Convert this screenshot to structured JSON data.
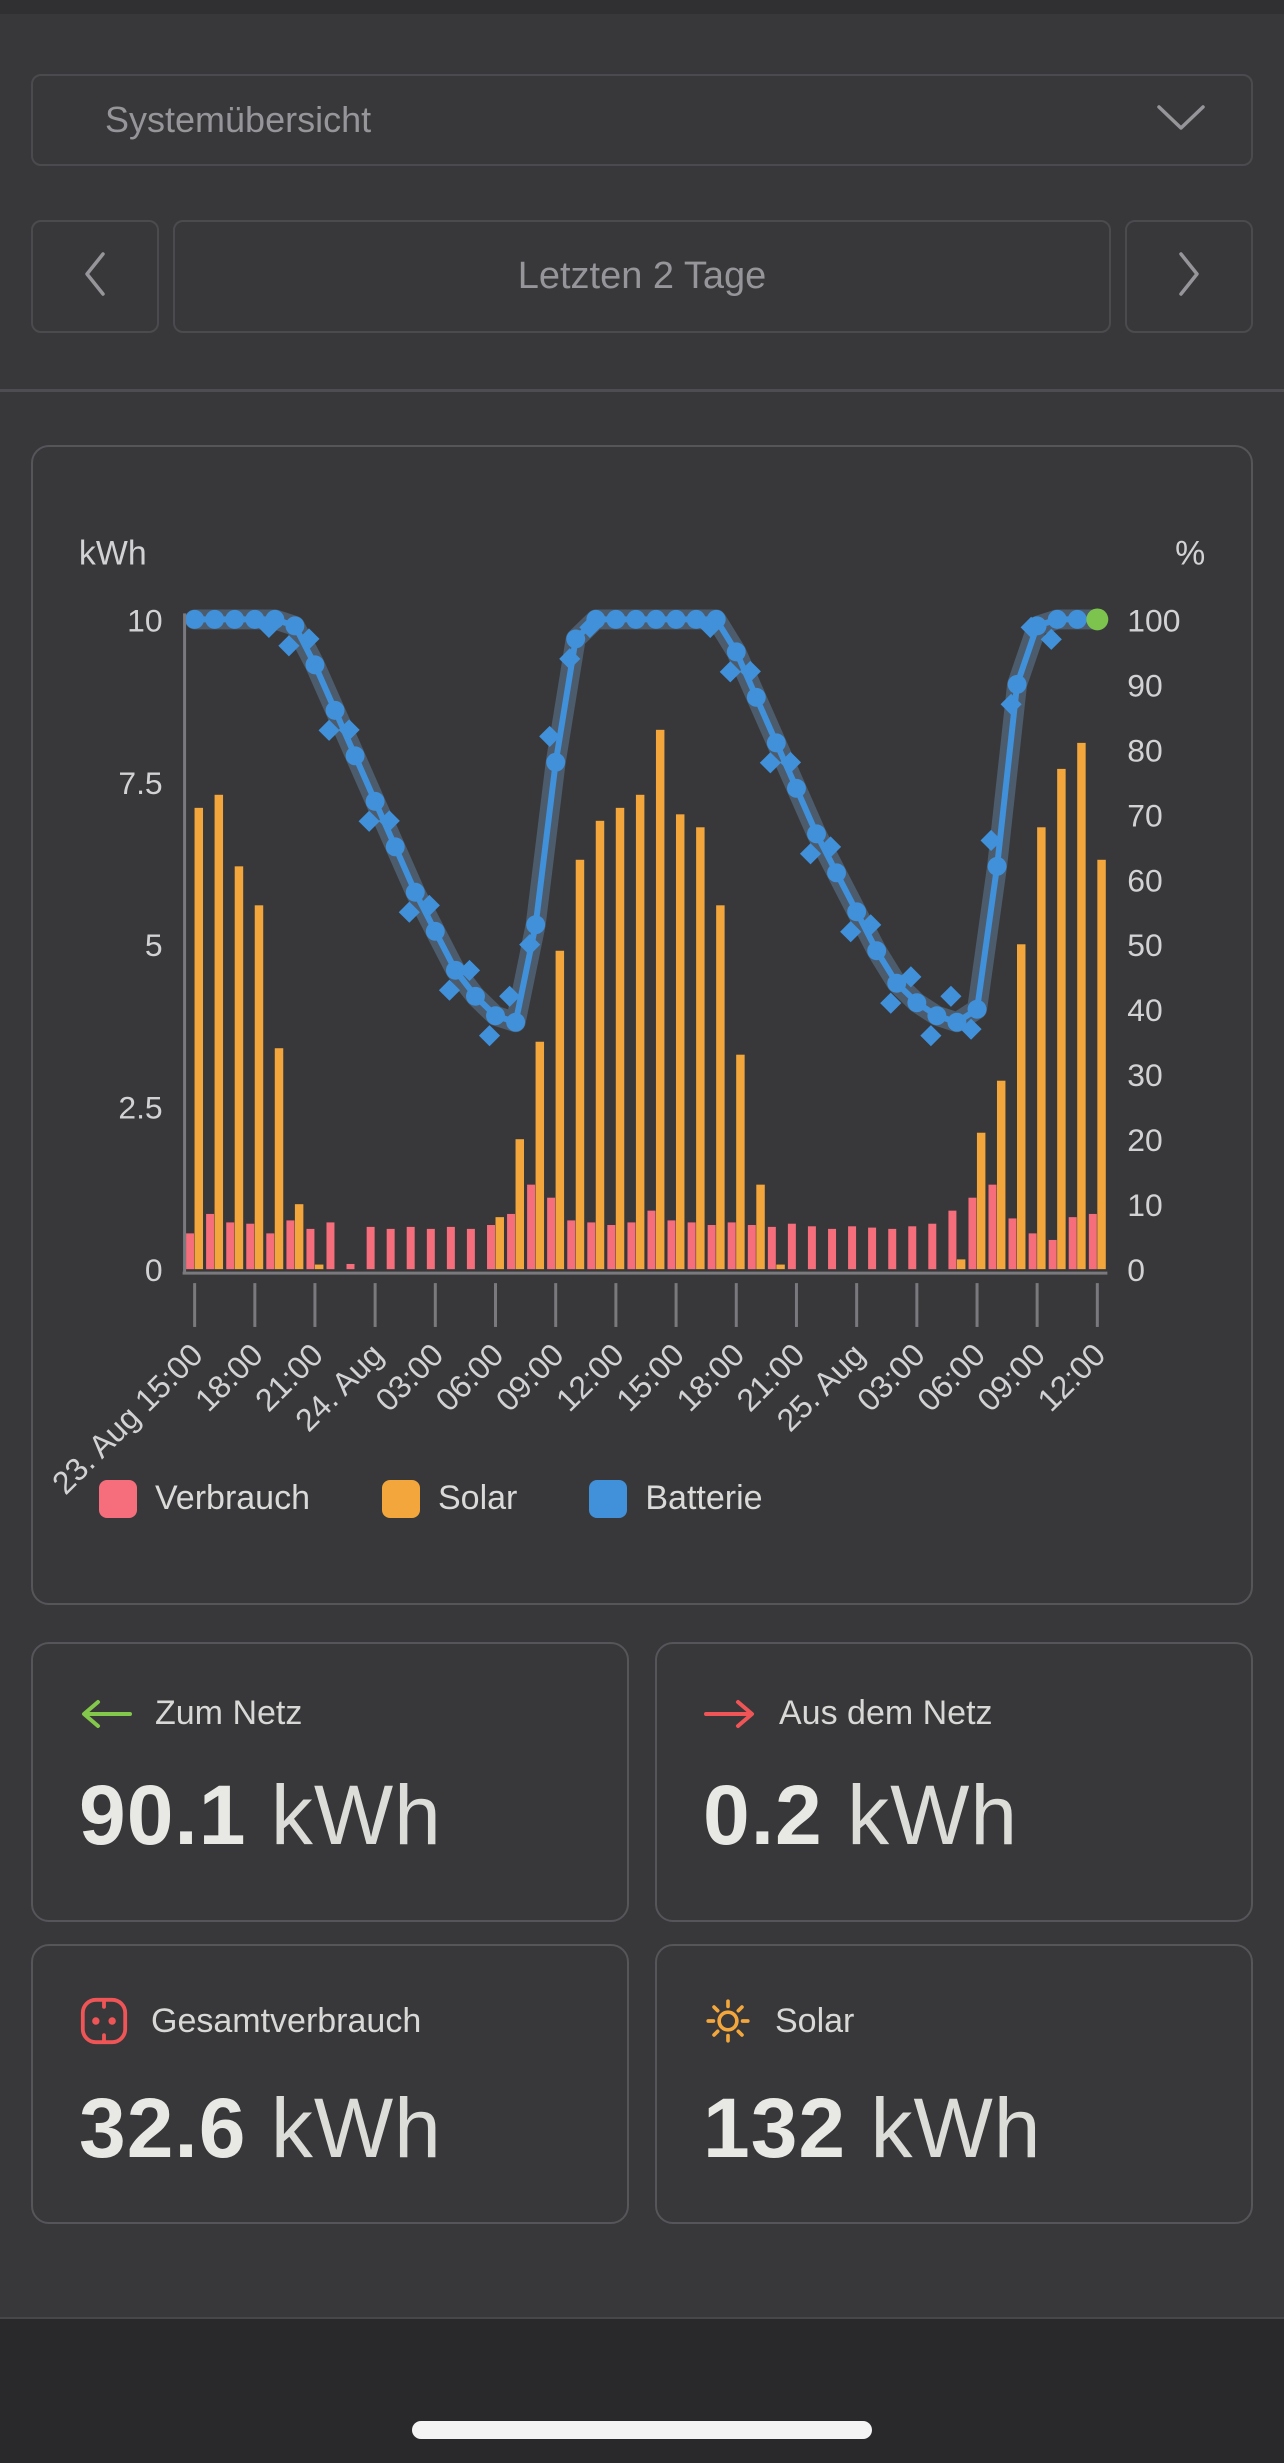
{
  "header": {
    "system_selector": "Systemübersicht"
  },
  "period_nav": {
    "label": "Letzten 2 Tage"
  },
  "chart_data": {
    "type": "bar+line",
    "left_axis_title": "kWh",
    "right_axis_title": "%",
    "ylim_left": [
      0,
      10
    ],
    "ylim_right": [
      0,
      100
    ],
    "left_tick_labels": [
      "10",
      "7.5",
      "5",
      "2.5",
      "0"
    ],
    "right_tick_labels": [
      "100",
      "90",
      "80",
      "70",
      "60",
      "50",
      "40",
      "30",
      "20",
      "10",
      "0"
    ],
    "x_tick_labels": [
      "23. Aug 15:00",
      "18:00",
      "21:00",
      "24. Aug",
      "03:00",
      "06:00",
      "09:00",
      "12:00",
      "15:00",
      "18:00",
      "21:00",
      "25. Aug",
      "03:00",
      "06:00",
      "09:00",
      "12:00"
    ],
    "tick_every": 3,
    "hours": [
      "23. Aug 15:00",
      "16:00",
      "17:00",
      "18:00",
      "19:00",
      "20:00",
      "21:00",
      "22:00",
      "23:00",
      "24. Aug 00:00",
      "01:00",
      "02:00",
      "03:00",
      "04:00",
      "05:00",
      "06:00",
      "07:00",
      "08:00",
      "09:00",
      "10:00",
      "11:00",
      "12:00",
      "13:00",
      "14:00",
      "15:00",
      "16:00",
      "17:00",
      "18:00",
      "19:00",
      "20:00",
      "21:00",
      "22:00",
      "23:00",
      "25. Aug 00:00",
      "01:00",
      "02:00",
      "03:00",
      "04:00",
      "05:00",
      "06:00",
      "07:00",
      "08:00",
      "09:00",
      "10:00",
      "11:00",
      "12:00"
    ],
    "series": [
      {
        "name": "Verbrauch",
        "type": "bar",
        "unit": "kWh",
        "color": "#f66e7b",
        "values": [
          0.55,
          0.85,
          0.72,
          0.7,
          0.55,
          0.75,
          0.62,
          0.72,
          0.08,
          0.65,
          0.62,
          0.65,
          0.62,
          0.65,
          0.62,
          0.68,
          0.85,
          1.3,
          1.1,
          0.75,
          0.72,
          0.68,
          0.72,
          0.9,
          0.75,
          0.72,
          0.68,
          0.72,
          0.68,
          0.65,
          0.7,
          0.66,
          0.62,
          0.66,
          0.64,
          0.62,
          0.66,
          0.7,
          0.9,
          1.1,
          1.3,
          0.78,
          0.55,
          0.45,
          0.8,
          0.85
        ]
      },
      {
        "name": "Solar",
        "type": "bar",
        "unit": "kWh",
        "color": "#f2a63c",
        "values": [
          7.1,
          7.3,
          6.2,
          5.6,
          3.4,
          1.0,
          0.07,
          0,
          0,
          0,
          0,
          0,
          0,
          0,
          0,
          0.8,
          2.0,
          3.5,
          4.9,
          6.3,
          6.9,
          7.1,
          7.3,
          8.3,
          7.0,
          6.8,
          5.6,
          3.3,
          1.3,
          0.07,
          0,
          0,
          0,
          0,
          0,
          0,
          0,
          0,
          0.15,
          2.1,
          2.9,
          5.0,
          6.8,
          7.7,
          8.1,
          6.3
        ]
      },
      {
        "name": "Batterie",
        "type": "line",
        "unit": "%",
        "color": "#4190da",
        "values": [
          100,
          100,
          100,
          100,
          100,
          99,
          93,
          86,
          79,
          72,
          65,
          58,
          52,
          46,
          42,
          39,
          38,
          53,
          78,
          97,
          100,
          100,
          100,
          100,
          100,
          100,
          100,
          95,
          88,
          81,
          74,
          67,
          61,
          55,
          49,
          44,
          41,
          39,
          38,
          40,
          62,
          90,
          99,
          100,
          100,
          100
        ]
      }
    ],
    "legend": [
      {
        "label": "Verbrauch",
        "color": "#f66e7b"
      },
      {
        "label": "Solar",
        "color": "#f2a63c"
      },
      {
        "label": "Batterie",
        "color": "#4190da"
      }
    ],
    "current_marker_color": "#7cc44e"
  },
  "stats": [
    {
      "label": "Zum Netz",
      "value": "90.1",
      "unit": "kWh",
      "icon": "arrow-left",
      "icon_color": "#83c74b"
    },
    {
      "label": "Aus dem Netz",
      "value": "0.2",
      "unit": "kWh",
      "icon": "arrow-right",
      "icon_color": "#ef5556"
    },
    {
      "label": "Gesamtverbrauch",
      "value": "32.6",
      "unit": "kWh",
      "icon": "power-socket",
      "icon_color": "#ef5556"
    },
    {
      "label": "Solar",
      "value": "132",
      "unit": "kWh",
      "icon": "sun",
      "icon_color": "#f2a63c"
    }
  ]
}
